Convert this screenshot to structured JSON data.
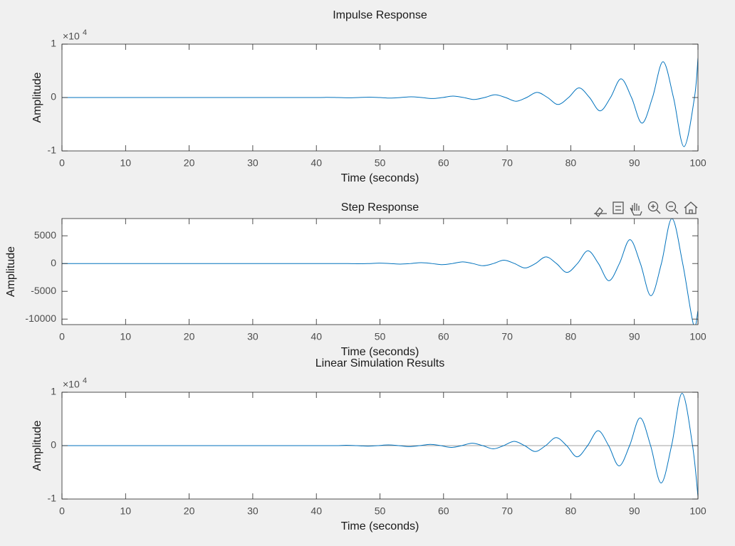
{
  "chart_data": [
    {
      "type": "line",
      "title": "Impulse Response",
      "xlabel": "Time (seconds)",
      "ylabel": "Amplitude",
      "y_multiplier": {
        "base": "×10",
        "exponent": "4"
      },
      "x": [
        0,
        10,
        20,
        30,
        40.05,
        41.7,
        43.35,
        45,
        46.65,
        48.3,
        49.95,
        51.6,
        53.25,
        54.9,
        56.55,
        58.2,
        59.85,
        61.5,
        63.15,
        64.8,
        66.45,
        68.1,
        69.75,
        71.4,
        73.05,
        74.7,
        76.35,
        78,
        79.65,
        81.3,
        82.95,
        84.6,
        86.25,
        87.9,
        89.55,
        91.2,
        92.85,
        94.5,
        96.15,
        97.8,
        99.45,
        100
      ],
      "series": [
        {
          "color": "#0072bd",
          "values": [
            0,
            0,
            0,
            0,
            0,
            0.004,
            0,
            -0.005,
            0,
            0.007,
            0,
            -0.01,
            0,
            0.014,
            0,
            -0.019,
            0,
            0.027,
            0,
            -0.037,
            0,
            0.051,
            0,
            -0.07,
            0,
            0.097,
            0,
            -0.13,
            0,
            0.18,
            0,
            -0.25,
            0,
            0.35,
            0,
            -0.48,
            0,
            0.67,
            0,
            -0.92,
            0,
            0.74
          ]
        }
      ],
      "xlim": [
        0,
        100
      ],
      "xticks": [
        0,
        10,
        20,
        30,
        40,
        50,
        60,
        70,
        80,
        90,
        100
      ],
      "ylim": [
        -1,
        1
      ],
      "yticks": [
        -1,
        0,
        1
      ]
    },
    {
      "type": "line",
      "title": "Step Response",
      "xlabel": "Time (seconds)",
      "ylabel": "Amplitude",
      "x": [
        0,
        10,
        20,
        30,
        40,
        45,
        46.6,
        48.25,
        49.9,
        51.55,
        53.2,
        54.85,
        56.5,
        58.15,
        59.8,
        61.4,
        63,
        64.6,
        66.2,
        67.85,
        69.5,
        71.15,
        72.8,
        74.45,
        76.1,
        77.75,
        79.4,
        81.05,
        82.7,
        84.35,
        86,
        87.65,
        89.3,
        90.95,
        92.6,
        94.25,
        95.9,
        97.6,
        99.3,
        100
      ],
      "series": [
        {
          "color": "#0072bd",
          "values": [
            0,
            0,
            0,
            0,
            0,
            0,
            -40,
            0,
            70,
            0,
            -100,
            0,
            150,
            0,
            -200,
            0,
            300,
            0,
            -400,
            0,
            600,
            0,
            -800,
            0,
            1200,
            0,
            -1600,
            0,
            2300,
            0,
            -3100,
            0,
            4300,
            0,
            -5800,
            0,
            8100,
            0,
            -11000,
            -8500
          ]
        }
      ],
      "xlim": [
        0,
        100
      ],
      "xticks": [
        0,
        10,
        20,
        30,
        40,
        50,
        60,
        70,
        80,
        90,
        100
      ],
      "ylim": [
        -11000,
        8100
      ],
      "yticks": [
        -10000,
        -5000,
        0,
        5000
      ]
    },
    {
      "type": "line",
      "title": "Linear Simulation Results",
      "xlabel": "Time (seconds)",
      "ylabel": "Amplitude",
      "y_multiplier": {
        "base": "×10",
        "exponent": "4"
      },
      "x": [
        0,
        10,
        20,
        30,
        40,
        43.05,
        44.7,
        46.35,
        48,
        49.65,
        51.3,
        52.95,
        54.6,
        56.25,
        57.9,
        59.55,
        61.2,
        62.85,
        64.5,
        66.15,
        67.8,
        69.45,
        71.1,
        72.75,
        74.4,
        76.05,
        77.7,
        79.35,
        81,
        82.65,
        84.3,
        85.95,
        87.6,
        89.25,
        90.9,
        92.55,
        94.2,
        95.85,
        97.5,
        99.15,
        100
      ],
      "series": [
        {
          "color": "#a0a0a0",
          "values": [
            0,
            0,
            0,
            0,
            0,
            0,
            0,
            0,
            0,
            0,
            0,
            0,
            0,
            0,
            0,
            0,
            0,
            0,
            0,
            0,
            0,
            0,
            0,
            0,
            0,
            0,
            0,
            0,
            0,
            0,
            0,
            0,
            0,
            0,
            0,
            0,
            0,
            0,
            0,
            0,
            0
          ]
        },
        {
          "color": "#0072bd",
          "values": [
            0,
            0,
            0,
            0,
            0,
            0,
            0.007,
            0,
            -0.01,
            0,
            0.013,
            0,
            -0.018,
            0,
            0.024,
            0,
            -0.033,
            0,
            0.045,
            0,
            -0.06,
            0,
            0.08,
            0,
            -0.11,
            0,
            0.15,
            0,
            -0.21,
            0,
            0.28,
            0,
            -0.38,
            0,
            0.52,
            0,
            -0.7,
            0,
            0.98,
            0,
            -0.95
          ]
        }
      ],
      "xlim": [
        0,
        100
      ],
      "xticks": [
        0,
        10,
        20,
        30,
        40,
        50,
        60,
        70,
        80,
        90,
        100
      ],
      "ylim": [
        -1,
        1
      ],
      "yticks": [
        -1,
        0,
        1
      ]
    }
  ]
}
